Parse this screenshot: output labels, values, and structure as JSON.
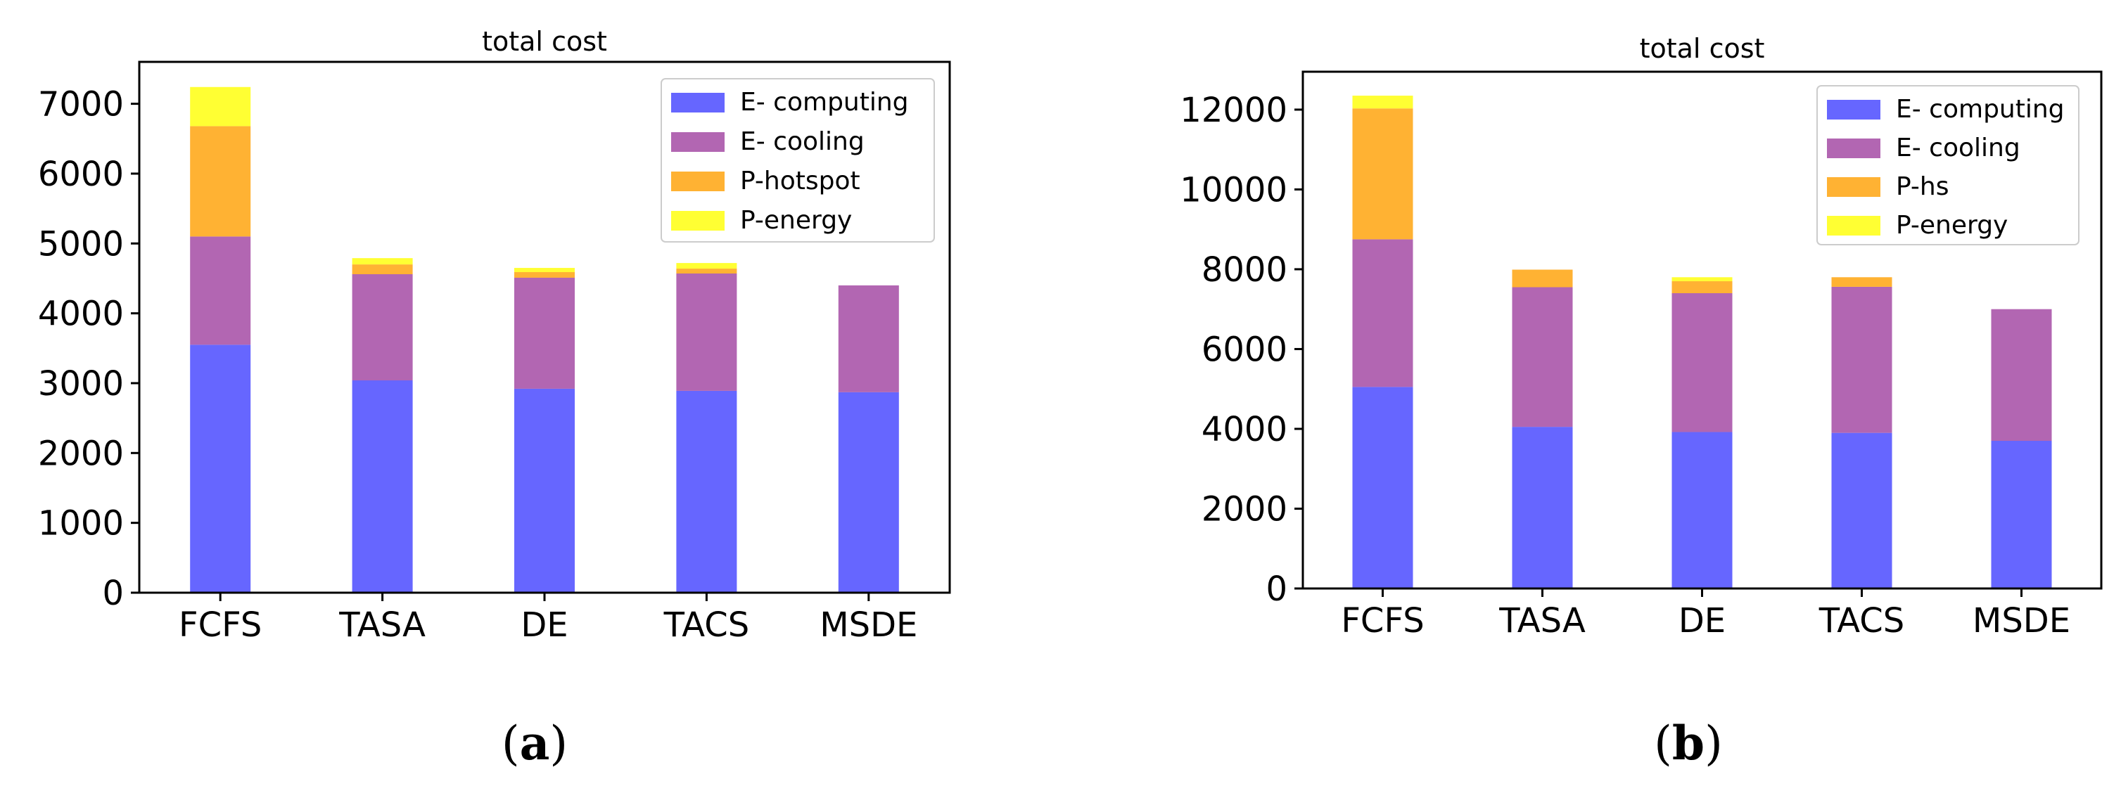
{
  "chart_data": [
    {
      "type": "bar",
      "stacked": true,
      "title": "total cost",
      "panel_label": "a",
      "categories": [
        "FCFS",
        "TASA",
        "DE",
        "TACS",
        "MSDE"
      ],
      "ylim": [
        0,
        7600
      ],
      "yticks": [
        0,
        1000,
        2000,
        3000,
        4000,
        5000,
        6000,
        7000
      ],
      "xlabel": "",
      "ylabel": "",
      "legend_position": "top-right",
      "series": [
        {
          "name": "E- computing",
          "color": "#6666ff",
          "values": [
            3550,
            3040,
            2920,
            2890,
            2870
          ]
        },
        {
          "name": "E- cooling",
          "color": "#b266b2",
          "values": [
            1550,
            1520,
            1590,
            1680,
            1530
          ]
        },
        {
          "name": "P-hotspot",
          "color": "#ffb233",
          "values": [
            1580,
            140,
            80,
            70,
            0
          ]
        },
        {
          "name": "P-energy",
          "color": "#ffff33",
          "values": [
            560,
            90,
            60,
            80,
            0
          ]
        }
      ]
    },
    {
      "type": "bar",
      "stacked": true,
      "title": "total cost",
      "panel_label": "b",
      "categories": [
        "FCFS",
        "TASA",
        "DE",
        "TACS",
        "MSDE"
      ],
      "ylim": [
        0,
        12950
      ],
      "yticks": [
        0,
        2000,
        4000,
        6000,
        8000,
        10000,
        12000
      ],
      "xlabel": "",
      "ylabel": "",
      "legend_position": "top-right",
      "series": [
        {
          "name": "E- computing",
          "color": "#6666ff",
          "values": [
            5050,
            4050,
            3920,
            3900,
            3700
          ]
        },
        {
          "name": "E- cooling",
          "color": "#b266b2",
          "values": [
            3700,
            3500,
            3480,
            3660,
            3300
          ]
        },
        {
          "name": "P-hs",
          "color": "#ffb233",
          "values": [
            3280,
            440,
            300,
            240,
            0
          ]
        },
        {
          "name": "P-energy",
          "color": "#ffff33",
          "values": [
            320,
            0,
            100,
            0,
            0
          ]
        }
      ]
    }
  ]
}
